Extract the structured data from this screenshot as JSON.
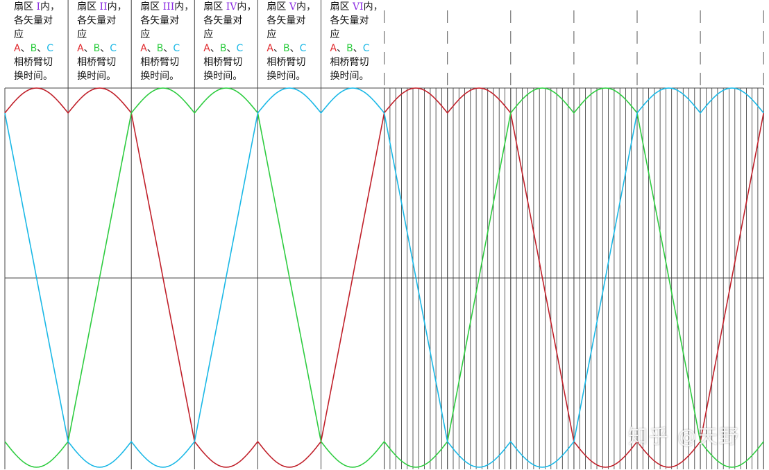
{
  "chart_data": {
    "type": "line",
    "sectors": [
      {
        "prefix": "扇区",
        "roman": "I",
        "suffix": "内，",
        "line2": "各矢量对",
        "line3": "应",
        "a": "A",
        "b": "B",
        "c": "C",
        "sep": "、",
        "line5": "相桥臂切",
        "line6": "换时间。"
      },
      {
        "prefix": "扇区",
        "roman": "II",
        "suffix": "内，",
        "line2": "各矢量对",
        "line3": "应",
        "a": "A",
        "b": "B",
        "c": "C",
        "sep": "、",
        "line5": "相桥臂切",
        "line6": "换时间。"
      },
      {
        "prefix": "扇区",
        "roman": "III",
        "suffix": "内，",
        "line2": "各矢量对",
        "line3": "应",
        "a": "A",
        "b": "B",
        "c": "C",
        "sep": "、",
        "line5": "相桥臂切",
        "line6": "换时间。"
      },
      {
        "prefix": "扇区",
        "roman": "IV",
        "suffix": "内，",
        "line2": "各矢量对",
        "line3": "应",
        "a": "A",
        "b": "B",
        "c": "C",
        "sep": "、",
        "line5": "相桥臂切",
        "line6": "换时间。"
      },
      {
        "prefix": "扇区",
        "roman": "V",
        "suffix": "内，",
        "line2": "各矢量对",
        "line3": "应",
        "a": "A",
        "b": "B",
        "c": "C",
        "sep": "、",
        "line5": "相桥臂切",
        "line6": "换时间。"
      },
      {
        "prefix": "扇区",
        "roman": "VI",
        "suffix": "内，",
        "line2": "各矢量对",
        "line3": "应",
        "a": "A",
        "b": "B",
        "c": "C",
        "sep": "、",
        "line5": "相桥臂切",
        "line6": "换时间。"
      }
    ],
    "cycles": 2,
    "sectors_per_cycle": 6,
    "y_range": [
      -1,
      1
    ],
    "top_envelope_peak": 0.86,
    "pwm_carrier_lines_per_cycle": 66,
    "series": [
      {
        "key": "A",
        "color": "#c0202a"
      },
      {
        "key": "B",
        "color": "#2ecc40"
      },
      {
        "key": "C",
        "color": "#1ab8e6"
      }
    ]
  },
  "watermark": "知乎 @天野",
  "colors": {
    "grid": "#444444",
    "carrier": "#333333",
    "dashed": "#555555"
  }
}
